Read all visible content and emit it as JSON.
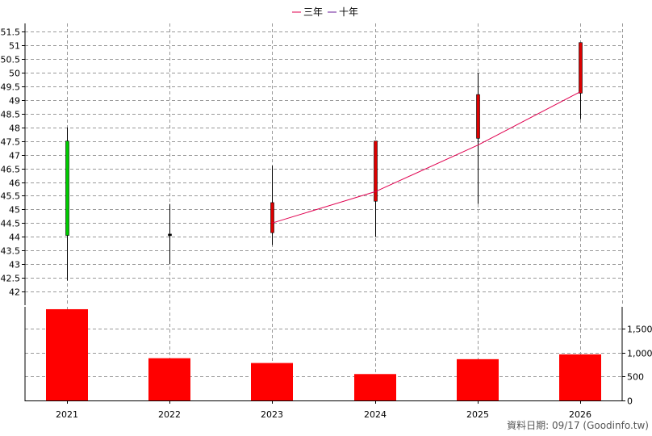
{
  "chart_data": {
    "type": "candlestick",
    "categories": [
      "2021",
      "2022",
      "2023",
      "2024",
      "2025",
      "2026"
    ],
    "price_axis": {
      "ylim": [
        41.5,
        51.8
      ],
      "ticks": [
        42,
        42.5,
        43,
        43.5,
        44,
        44.5,
        45,
        45.5,
        46,
        46.5,
        47,
        47.5,
        48,
        48.5,
        49,
        49.5,
        50,
        50.5,
        51,
        51.5
      ],
      "tick_labels": [
        "42",
        "42.5",
        "43",
        "43.5",
        "44",
        "44.5",
        "45",
        "45.5",
        "46",
        "46.5",
        "47",
        "47.5",
        "48",
        "48.5",
        "49",
        "49.5",
        "50",
        "50.5",
        "51",
        "51.5"
      ]
    },
    "candles": [
      {
        "x": "2021",
        "open": 47.5,
        "close": 44.05,
        "high": 48.0,
        "low": 42.4
      },
      {
        "x": "2022",
        "open": 44.1,
        "close": 44.1,
        "high": 45.2,
        "low": 43.0
      },
      {
        "x": "2023",
        "open": 44.15,
        "close": 45.25,
        "high": 46.6,
        "low": 43.7
      },
      {
        "x": "2024",
        "open": 45.3,
        "close": 47.5,
        "high": 47.5,
        "low": 44.0
      },
      {
        "x": "2025",
        "open": 47.6,
        "close": 49.2,
        "high": 50.0,
        "low": 45.2
      },
      {
        "x": "2026",
        "open": 49.25,
        "close": 51.1,
        "high": 51.1,
        "low": 48.3
      }
    ],
    "lines": [
      {
        "name": "三年",
        "color": "#e0004f",
        "x": [
          "2023",
          "2024",
          "2025",
          "2026"
        ],
        "values": [
          44.5,
          45.65,
          47.35,
          49.3
        ]
      },
      {
        "name": "十年",
        "color": "#6a1b9a",
        "x": [],
        "values": []
      }
    ],
    "volume": {
      "type": "bar",
      "values": [
        1900,
        880,
        780,
        550,
        860,
        960
      ],
      "ylim": [
        0,
        1950
      ],
      "ticks": [
        0,
        500,
        1000,
        1500
      ],
      "tick_labels": [
        "0",
        "500",
        "1,000",
        "1,500"
      ],
      "color": "#ff0000"
    },
    "legend_position": "top-center",
    "grid": true
  },
  "colors": {
    "up_candle": "#dd0000",
    "down_candle": "#00cc00",
    "grid": "#999999"
  },
  "footer": "資料日期: 09/17  (Goodinfo.tw)"
}
